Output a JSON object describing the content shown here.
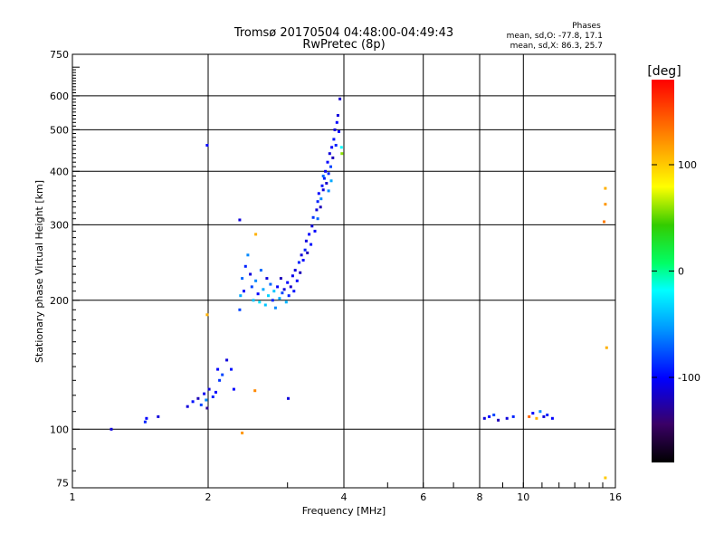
{
  "chart_data": {
    "type": "scatter",
    "title": "Tromsø 20170504 04:48:00-04:49:43",
    "subtitle": "RwPretec (8p)",
    "xlabel": "Frequency [MHz]",
    "ylabel": "Stationary phase Virtual Height [km]",
    "x_scale": "log",
    "y_scale": "log",
    "xlim": [
      1,
      16
    ],
    "ylim": [
      73,
      750
    ],
    "x_ticks": [
      {
        "value": 1,
        "label": "1"
      },
      {
        "value": 2,
        "label": "2"
      },
      {
        "value": 4,
        "label": "4"
      },
      {
        "value": 6,
        "label": "6"
      },
      {
        "value": 8,
        "label": "8"
      },
      {
        "value": 10,
        "label": "10"
      },
      {
        "value": 16,
        "label": "16"
      }
    ],
    "x_gridlines": [
      2,
      4,
      6,
      8,
      10
    ],
    "y_ticks": [
      {
        "value": 75,
        "label": "75"
      },
      {
        "value": 100,
        "label": "100"
      },
      {
        "value": 200,
        "label": "200"
      },
      {
        "value": 300,
        "label": "300"
      },
      {
        "value": 400,
        "label": "400"
      },
      {
        "value": 500,
        "label": "500"
      },
      {
        "value": 600,
        "label": "600"
      },
      {
        "value": 750,
        "label": "750"
      }
    ],
    "y_gridlines": [
      100,
      200,
      300,
      400,
      500,
      600
    ],
    "grid": true,
    "phase_info": {
      "heading": "Phases",
      "line_o": "mean, sd,O: -77.8, 17.1",
      "line_x": "mean, sd,X:  86.3, 25.7"
    },
    "colorbar": {
      "label": "[deg]",
      "min": -180,
      "max": 180,
      "ticks": [
        {
          "value": 100,
          "label": "100"
        },
        {
          "value": 0,
          "label": "0"
        },
        {
          "value": -100,
          "label": "-100"
        }
      ]
    },
    "series": [
      {
        "points_fvh_phase": [
          [
            1.22,
            100,
            -110
          ],
          [
            1.45,
            104,
            -90
          ],
          [
            1.46,
            106,
            -100
          ],
          [
            1.55,
            107,
            -110
          ],
          [
            1.8,
            113,
            -110
          ],
          [
            1.85,
            116,
            -95
          ],
          [
            1.9,
            118,
            -120
          ],
          [
            1.93,
            114,
            -80
          ],
          [
            1.96,
            121,
            -105
          ],
          [
            1.98,
            117,
            -60
          ],
          [
            2.01,
            124,
            -110
          ],
          [
            2.05,
            119,
            -90
          ],
          [
            2.08,
            122,
            -100
          ],
          [
            1.99,
            112,
            -130
          ],
          [
            2.1,
            138,
            -100
          ],
          [
            2.15,
            134,
            -80
          ],
          [
            2.2,
            145,
            -110
          ],
          [
            2.25,
            138,
            -95
          ],
          [
            2.28,
            124,
            -100
          ],
          [
            2.12,
            130,
            -85
          ],
          [
            1.99,
            460,
            -100
          ],
          [
            1.99,
            185,
            110
          ],
          [
            2.38,
            98,
            120
          ],
          [
            2.54,
            123,
            125
          ],
          [
            2.55,
            285,
            110
          ],
          [
            3.01,
            118,
            -110
          ],
          [
            2.35,
            308,
            -110
          ],
          [
            2.36,
            205,
            -50
          ],
          [
            2.35,
            190,
            -80
          ],
          [
            2.38,
            225,
            -70
          ],
          [
            2.4,
            210,
            -100
          ],
          [
            2.42,
            240,
            -90
          ],
          [
            2.45,
            255,
            -60
          ],
          [
            2.48,
            230,
            -110
          ],
          [
            2.5,
            215,
            -80
          ],
          [
            2.52,
            200,
            -40
          ],
          [
            2.55,
            222,
            -60
          ],
          [
            2.58,
            207,
            -100
          ],
          [
            2.6,
            198,
            -30
          ],
          [
            2.62,
            235,
            -70
          ],
          [
            2.65,
            212,
            -50
          ],
          [
            2.68,
            195,
            -40
          ],
          [
            2.7,
            225,
            -110
          ],
          [
            2.72,
            205,
            -35
          ],
          [
            2.75,
            218,
            -70
          ],
          [
            2.78,
            200,
            -90
          ],
          [
            2.8,
            210,
            -40
          ],
          [
            2.82,
            192,
            -60
          ],
          [
            2.85,
            215,
            -100
          ],
          [
            2.88,
            202,
            -50
          ],
          [
            2.9,
            225,
            -120
          ],
          [
            2.92,
            208,
            -80
          ],
          [
            2.95,
            212,
            -110
          ],
          [
            2.98,
            198,
            -45
          ],
          [
            3.0,
            220,
            -100
          ],
          [
            3.02,
            205,
            -90
          ],
          [
            3.05,
            215,
            -115
          ],
          [
            3.08,
            228,
            -105
          ],
          [
            3.1,
            210,
            -95
          ],
          [
            3.12,
            235,
            -110
          ],
          [
            3.15,
            222,
            -100
          ],
          [
            3.18,
            245,
            -90
          ],
          [
            3.2,
            232,
            -120
          ],
          [
            3.22,
            255,
            -110
          ],
          [
            3.25,
            248,
            -100
          ],
          [
            3.28,
            262,
            -90
          ],
          [
            3.3,
            275,
            -110
          ],
          [
            3.32,
            258,
            -120
          ],
          [
            3.35,
            285,
            -100
          ],
          [
            3.38,
            270,
            -95
          ],
          [
            3.4,
            298,
            -110
          ],
          [
            3.42,
            312,
            -85
          ],
          [
            3.45,
            290,
            -100
          ],
          [
            3.48,
            325,
            -110
          ],
          [
            3.5,
            340,
            -90
          ],
          [
            3.52,
            355,
            -100
          ],
          [
            3.55,
            330,
            -120
          ],
          [
            3.58,
            370,
            -95
          ],
          [
            3.6,
            362,
            -110
          ],
          [
            3.62,
            385,
            -90
          ],
          [
            3.64,
            400,
            -105
          ],
          [
            3.66,
            375,
            -115
          ],
          [
            3.68,
            420,
            -100
          ],
          [
            3.7,
            395,
            -90
          ],
          [
            3.72,
            440,
            -110
          ],
          [
            3.74,
            410,
            -80
          ],
          [
            3.76,
            455,
            -100
          ],
          [
            3.78,
            430,
            -120
          ],
          [
            3.8,
            475,
            -95
          ],
          [
            3.82,
            500,
            -110
          ],
          [
            3.84,
            460,
            -90
          ],
          [
            3.86,
            520,
            -100
          ],
          [
            3.88,
            540,
            -110
          ],
          [
            3.9,
            495,
            -100
          ],
          [
            3.92,
            590,
            -115
          ],
          [
            3.95,
            455,
            -20
          ],
          [
            3.96,
            440,
            60
          ],
          [
            3.56,
            345,
            -60
          ],
          [
            3.6,
            390,
            -70
          ],
          [
            3.7,
            360,
            -60
          ],
          [
            3.75,
            380,
            -50
          ],
          [
            3.5,
            310,
            -70
          ],
          [
            8.2,
            106,
            -110
          ],
          [
            8.4,
            107,
            -100
          ],
          [
            8.6,
            108,
            -80
          ],
          [
            8.8,
            105,
            -120
          ],
          [
            9.2,
            106,
            -110
          ],
          [
            9.5,
            107,
            -90
          ],
          [
            10.3,
            107,
            140
          ],
          [
            10.5,
            109,
            -100
          ],
          [
            10.7,
            106,
            110
          ],
          [
            10.9,
            110,
            -60
          ],
          [
            11.1,
            107,
            -110
          ],
          [
            11.3,
            108,
            -90
          ],
          [
            11.6,
            106,
            -100
          ],
          [
            15.2,
            365,
            110
          ],
          [
            15.2,
            335,
            120
          ],
          [
            15.1,
            305,
            130
          ],
          [
            15.3,
            155,
            110
          ],
          [
            15.2,
            77,
            100
          ]
        ]
      }
    ]
  }
}
